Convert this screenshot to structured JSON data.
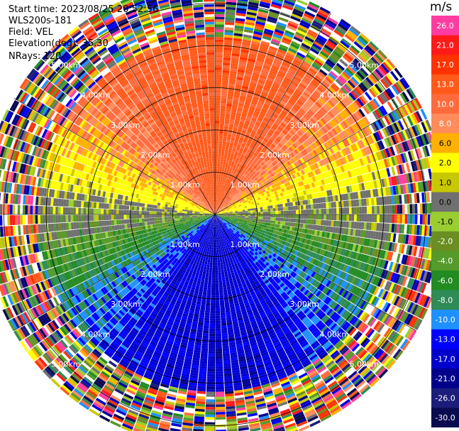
{
  "header": {
    "start_time": "Start time: 2023/08/25 20:52:56",
    "instrument": "WLS200s-181",
    "field": "Field: VEL",
    "elevation": "Elevation(deg): 35.30",
    "nrays": "NRays: 120"
  },
  "chart_data": {
    "type": "heatmap",
    "projection": "polar PPI",
    "field": "VEL",
    "unit": "m/s",
    "n_rays": 120,
    "elevation_deg": 35.3,
    "range_rings_km": [
      1.0,
      2.0,
      3.0,
      4.0,
      5.0
    ],
    "ring_labels": [
      "1.00km",
      "2.00km",
      "3.00km",
      "4.00km",
      "5.00km"
    ],
    "max_range_km": 5.5,
    "noise_beyond_km": 4.2,
    "colorbar": {
      "ticks": [
        "26.0",
        "21.0",
        "17.0",
        "13.0",
        "10.0",
        "8.0",
        "6.0",
        "2.0",
        "1.0",
        "0.0",
        "-1.0",
        "-2.0",
        "-4.0",
        "-6.0",
        "-8.0",
        "-10.0",
        "-13.0",
        "-17.0",
        "-21.0",
        "-26.0",
        "-30.0"
      ],
      "colors": [
        "#ff3da0",
        "#ff1a1a",
        "#ff3300",
        "#ff5a1a",
        "#ff6b3d",
        "#ff8c5a",
        "#ffb000",
        "#ffff00",
        "#c8c800",
        "#707070",
        "#9acd32",
        "#6b8e23",
        "#559a2a",
        "#228b22",
        "#2e8b57",
        "#1e90ff",
        "#0000ff",
        "#0000cd",
        "#00008b",
        "#1c1c7a",
        "#0a0a50"
      ],
      "velocity_bounds": [
        -30,
        30
      ]
    }
  },
  "colors": {
    "background": "#ffffff",
    "rings": "#000000",
    "spokes": "#000000"
  }
}
